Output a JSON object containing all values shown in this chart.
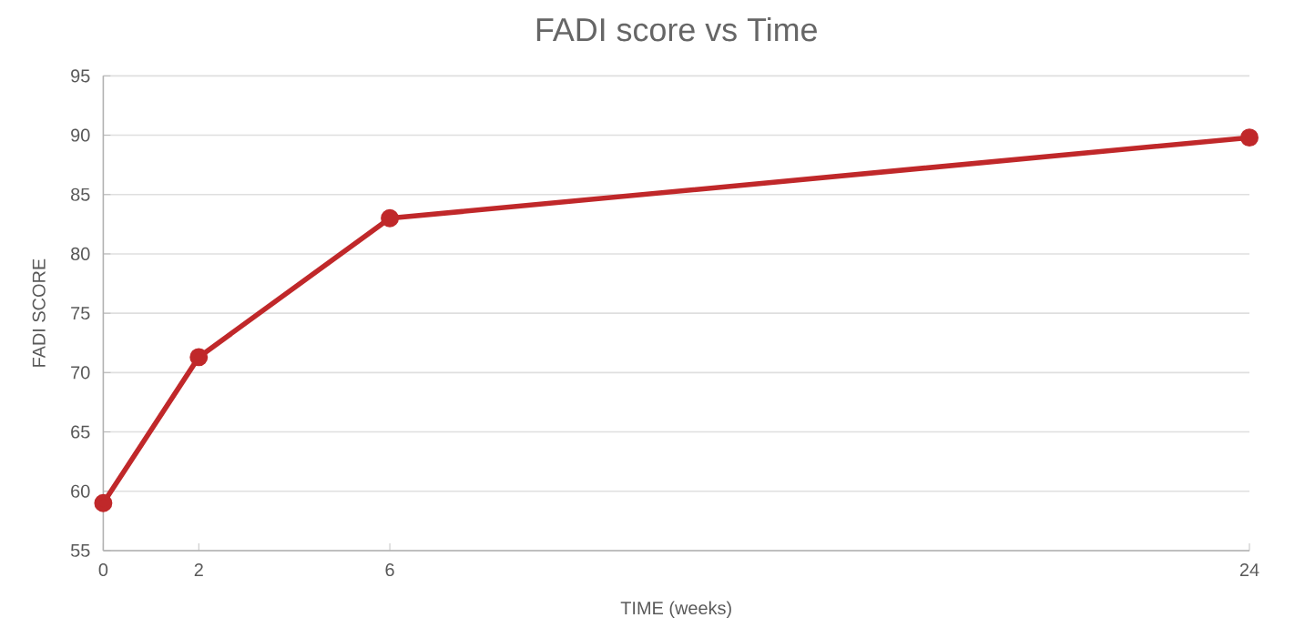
{
  "chart_data": {
    "type": "line",
    "title": "FADI score vs Time",
    "xlabel": "TIME (weeks)",
    "ylabel": "FADI SCORE",
    "x": [
      0,
      2,
      6,
      24
    ],
    "series": [
      {
        "color": "#c0282a",
        "values": [
          59,
          71.3,
          83,
          89.8
        ]
      }
    ],
    "xlim": [
      0,
      24
    ],
    "xticks": [
      0,
      2,
      6,
      24
    ],
    "ylim": [
      55,
      95
    ],
    "yticks": [
      55,
      60,
      65,
      70,
      75,
      80,
      85,
      90,
      95
    ],
    "grid": "y",
    "marker": "circle",
    "line_style": "solid"
  }
}
